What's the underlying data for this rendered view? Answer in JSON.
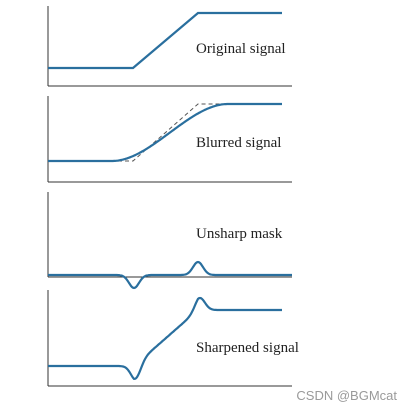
{
  "colors": {
    "signal": "#2a6f9e",
    "reference": "#555555",
    "axis": "#333333"
  },
  "panels": [
    {
      "id": "original",
      "label": "Original signal",
      "curve": "ramp",
      "show_reference": false
    },
    {
      "id": "blurred",
      "label": "Blurred signal",
      "curve": "blurred",
      "show_reference": true
    },
    {
      "id": "unsharp",
      "label": "Unsharp mask",
      "curve": "mask",
      "show_reference": false
    },
    {
      "id": "sharpened",
      "label": "Sharpened signal",
      "curve": "sharpened",
      "show_reference": false
    }
  ],
  "watermark": "CSDN @BGMcat"
}
